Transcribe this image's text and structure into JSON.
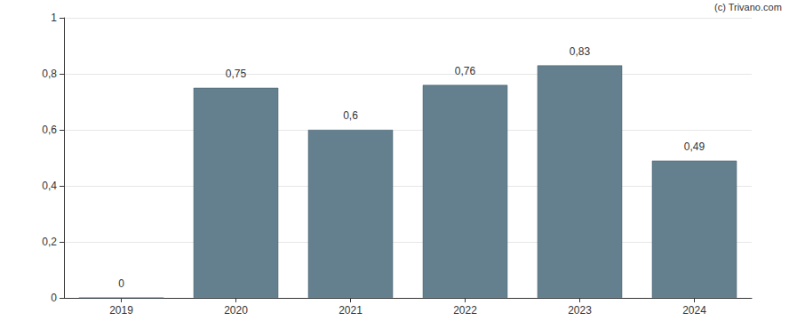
{
  "chart_data": {
    "type": "bar",
    "annotation": "(c) Trivano.com",
    "categories": [
      "2019",
      "2020",
      "2021",
      "2022",
      "2023",
      "2024"
    ],
    "values": [
      0,
      0.75,
      0.6,
      0.76,
      0.83,
      0.49
    ],
    "value_labels": [
      "0",
      "0,75",
      "0,6",
      "0,76",
      "0,83",
      "0,49"
    ],
    "color": "#64808f",
    "ylim": [
      0,
      1
    ],
    "yticks": [
      0,
      {
        "value": 0.2,
        "label": "0,2"
      },
      {
        "value": 0.4,
        "label": "0,4"
      },
      {
        "value": 0.6,
        "label": "0,6"
      },
      {
        "value": 0.8,
        "label": "0,8"
      },
      1
    ],
    "grid": true,
    "data_labels": true
  }
}
